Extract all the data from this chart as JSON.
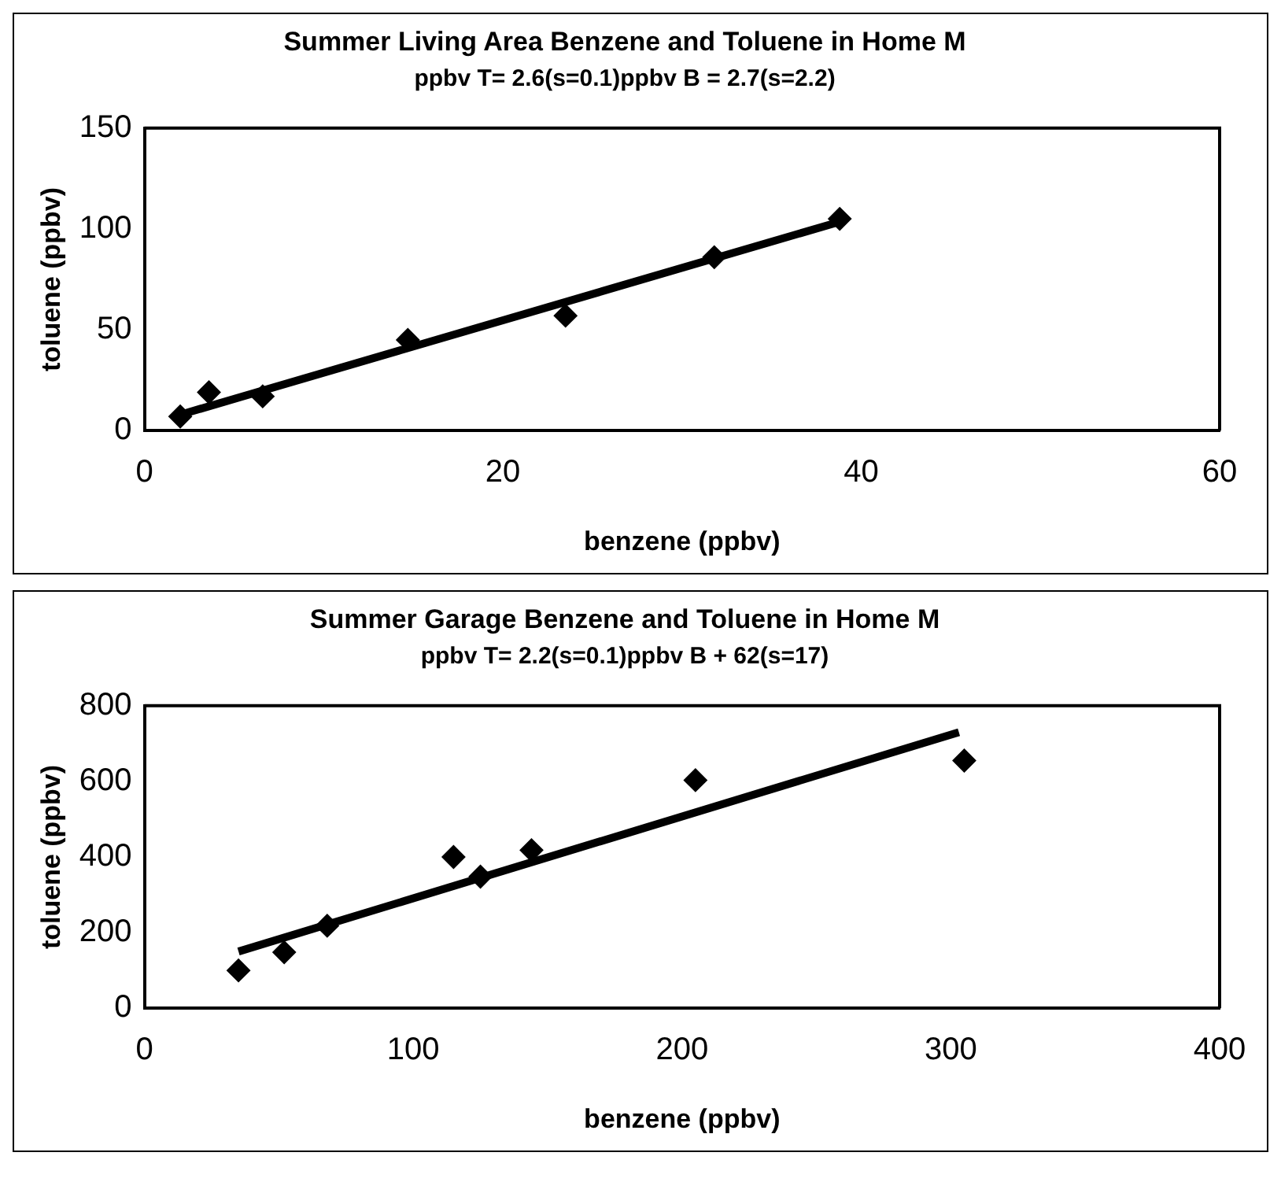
{
  "chart_data": [
    {
      "type": "scatter",
      "title": "Summer Living Area Benzene and Toluene in Home M",
      "subtitle": "ppbv T= 2.6(s=0.1)ppbv B = 2.7(s=2.2)",
      "xlabel": "benzene (ppbv)",
      "ylabel": "toluene (ppbv)",
      "xlim": [
        0,
        60
      ],
      "xticks": [
        0,
        20,
        40,
        60
      ],
      "ylim": [
        0,
        150
      ],
      "yticks": [
        0,
        50,
        100,
        150
      ],
      "series": [
        {
          "type": "scatter",
          "color": "#000000",
          "marker": "diamond",
          "x": [
            2.0,
            3.6,
            6.6,
            14.7,
            23.5,
            31.8,
            38.8
          ],
          "values": [
            7,
            19,
            17,
            45,
            57,
            86,
            105
          ]
        },
        {
          "type": "line",
          "color": "#000000",
          "marker": "none",
          "x": [
            2.0,
            39
          ],
          "values": [
            7.9,
            104.1
          ]
        }
      ]
    },
    {
      "type": "scatter",
      "title": "Summer Garage Benzene and Toluene in Home M",
      "subtitle": "ppbv T= 2.2(s=0.1)ppbv B + 62(s=17)",
      "xlabel": "benzene (ppbv)",
      "ylabel": "toluene (ppbv)",
      "xlim": [
        0,
        400
      ],
      "xticks": [
        0,
        100,
        200,
        300,
        400
      ],
      "ylim": [
        0,
        800
      ],
      "yticks": [
        0,
        200,
        400,
        600,
        800
      ],
      "series": [
        {
          "type": "scatter",
          "color": "#000000",
          "marker": "diamond",
          "x": [
            35,
            52,
            68,
            115,
            125,
            144,
            205,
            305
          ],
          "values": [
            100,
            148,
            218,
            400,
            348,
            418,
            603,
            655
          ]
        },
        {
          "type": "line",
          "color": "#000000",
          "marker": "none",
          "x": [
            35,
            303
          ],
          "values": [
            150,
            730
          ]
        }
      ]
    }
  ]
}
